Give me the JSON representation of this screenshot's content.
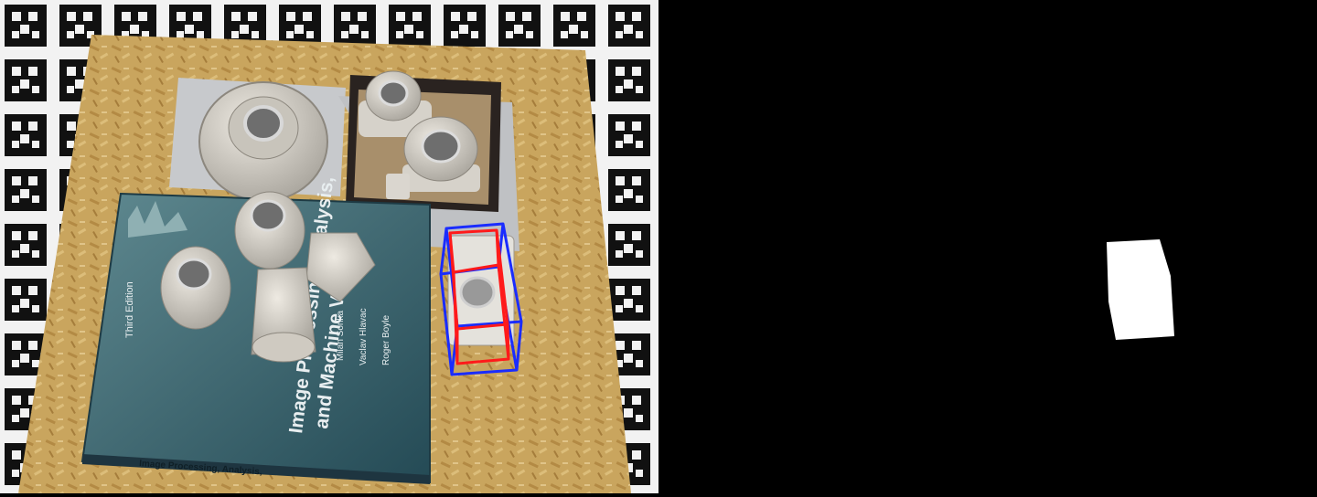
{
  "panels": {
    "left": {
      "kind": "camera-photo",
      "scene": "pose-estimation-table",
      "book": {
        "edition": "Third Edition",
        "authors": [
          "Milan Sonka",
          "Vaclav Hlavac",
          "Roger Boyle"
        ],
        "title_lines": [
          "Image Processing, Analysis,",
          "and Machine Vision"
        ],
        "spine": "Image Processing, Analysis,"
      },
      "overlay": {
        "box_colors": {
          "estimated": "#ff1a1a",
          "ground_truth": "#1a2cff"
        }
      }
    },
    "right": {
      "kind": "binary-mask",
      "colors": {
        "background": "#000000",
        "foreground": "#ffffff"
      }
    }
  }
}
